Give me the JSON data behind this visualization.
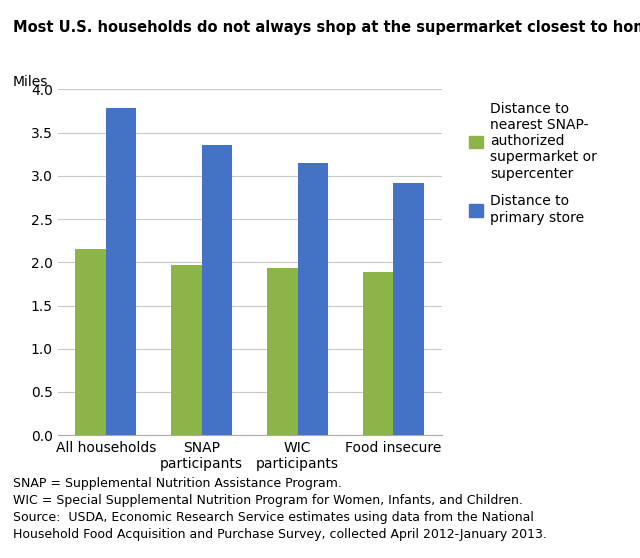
{
  "title": "Most U.S. households do not always shop at the supermarket closest to home",
  "ylabel": "Miles",
  "categories": [
    "All households",
    "SNAP\nparticipants",
    "WIC\nparticipants",
    "Food insecure"
  ],
  "green_values": [
    2.15,
    1.97,
    1.93,
    1.89
  ],
  "blue_values": [
    3.78,
    3.35,
    3.15,
    2.92
  ],
  "green_color": "#8db446",
  "blue_color": "#4472c4",
  "ylim": [
    0,
    4.0
  ],
  "yticks": [
    0.0,
    0.5,
    1.0,
    1.5,
    2.0,
    2.5,
    3.0,
    3.5,
    4.0
  ],
  "legend_green": "Distance to\nnearest SNAP-\nauthorized\nsupermarket or\nsupercenter",
  "legend_blue": "Distance to\nprimary store",
  "footnote": "SNAP = Supplemental Nutrition Assistance Program.\nWIC = Special Supplemental Nutrition Program for Women, Infants, and Children.\nSource:  USDA, Economic Research Service estimates using data from the National\nHousehold Food Acquisition and Purchase Survey, collected April 2012-January 2013.",
  "title_fontsize": 10.5,
  "ylabel_fontsize": 10,
  "tick_fontsize": 10,
  "legend_fontsize": 10,
  "footnote_fontsize": 9,
  "bar_width": 0.32,
  "background_color": "#ffffff"
}
